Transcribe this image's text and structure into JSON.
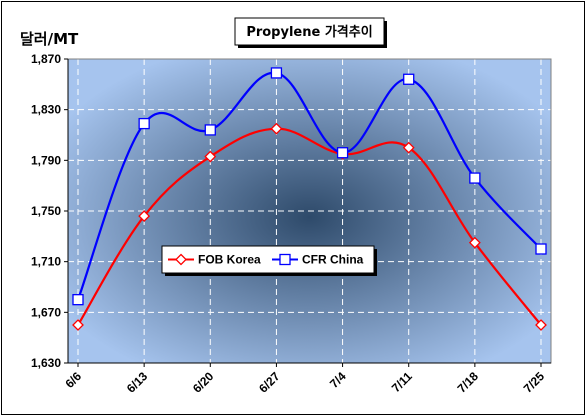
{
  "chart_data": {
    "type": "line",
    "title": "Propylene 가격추이",
    "ylabel": "달러/MT",
    "xlabel": "",
    "categories": [
      "6/6",
      "6/13",
      "6/20",
      "6/27",
      "7/4",
      "7/11",
      "7/18",
      "7/25"
    ],
    "y_ticks": [
      "1,630",
      "1,670",
      "1,710",
      "1,750",
      "1,790",
      "1,830",
      "1,870"
    ],
    "ylim": [
      1630,
      1870
    ],
    "grid": true,
    "legend_position": "middle-left",
    "series": [
      {
        "name": "FOB Korea",
        "color": "#ff0000",
        "marker": "diamond",
        "values": [
          1660,
          1746,
          1793,
          1815,
          1795,
          1800,
          1725,
          1660
        ]
      },
      {
        "name": "CFR China",
        "color": "#0000ff",
        "marker": "square",
        "values": [
          1680,
          1819,
          1814,
          1859,
          1796,
          1854,
          1776,
          1720
        ]
      }
    ],
    "colors": {
      "plot_center": "#2e4a6a",
      "plot_edge": "#a6c4ee",
      "grid": "#ffffff"
    }
  }
}
